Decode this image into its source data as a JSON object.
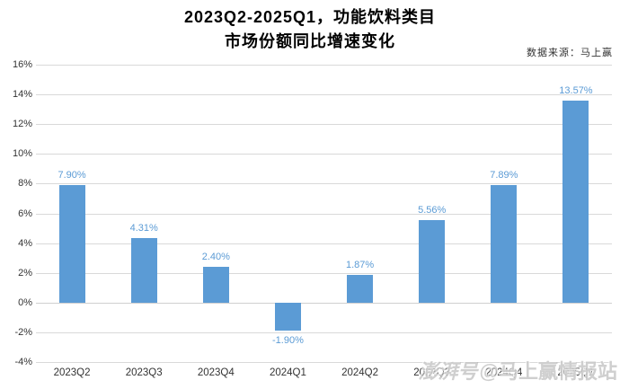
{
  "chart": {
    "title_line1": "2023Q2-2025Q1，功能饮料类目",
    "title_line2": "市场份额同比增速变化",
    "source": "数据来源：马上赢"
  },
  "watermark": {
    "prefix": "澎湃号",
    "handle": "@马上赢情报站"
  },
  "chart_data": {
    "type": "bar",
    "title": "2023Q2-2025Q1，功能饮料类目 市场份额同比增速变化",
    "categories": [
      "2023Q2",
      "2023Q3",
      "2023Q4",
      "2024Q1",
      "2024Q2",
      "2024Q3",
      "2024Q4",
      "2025Q1"
    ],
    "values": [
      7.9,
      4.31,
      2.4,
      -1.9,
      1.87,
      5.56,
      7.89,
      13.57
    ],
    "value_labels": [
      "7.90%",
      "4.31%",
      "2.40%",
      "-1.90%",
      "1.87%",
      "5.56%",
      "7.89%",
      "13.57%"
    ],
    "xlabel": "",
    "ylabel": "",
    "ylim": [
      -4,
      16
    ],
    "yticks": [
      16,
      14,
      12,
      10,
      8,
      6,
      4,
      2,
      0,
      -2,
      -4
    ],
    "ytick_suffix": "%",
    "grid": true,
    "legend": "none",
    "colors": {
      "bar": "#5B9BD5",
      "value_label": "#5B9BD5",
      "grid_line": "#D9D9D9",
      "zero_line": "#D0D0D0",
      "axis_text": "#333333",
      "title_text": "#000000",
      "watermark": "#A8A8A8"
    }
  }
}
